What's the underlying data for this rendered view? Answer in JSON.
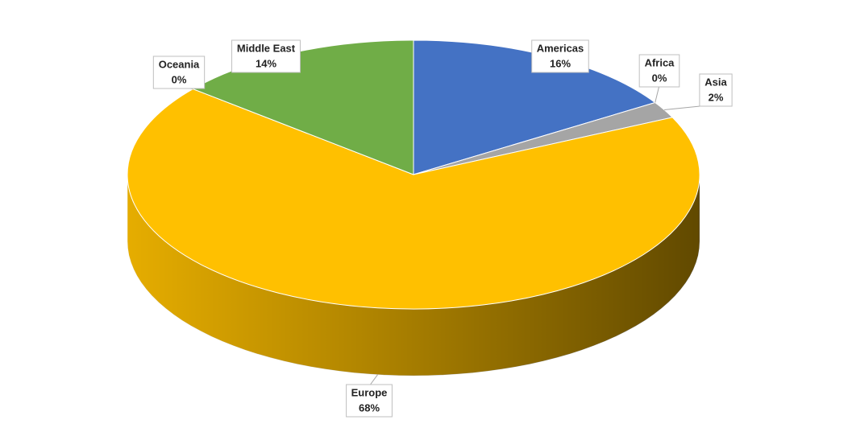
{
  "chart_data": {
    "type": "pie3d",
    "categories": [
      "Americas",
      "Africa",
      "Asia",
      "Europe",
      "Oceania",
      "Middle East"
    ],
    "values": [
      16,
      0,
      2,
      68,
      0,
      14
    ],
    "value_labels": [
      "16%",
      "0%",
      "2%",
      "68%",
      "0%",
      "14%"
    ],
    "colors": [
      "#4472c4",
      "#ed7d31",
      "#a5a5a5",
      "#ffc000",
      "#5b9bd5",
      "#70ad47"
    ]
  }
}
